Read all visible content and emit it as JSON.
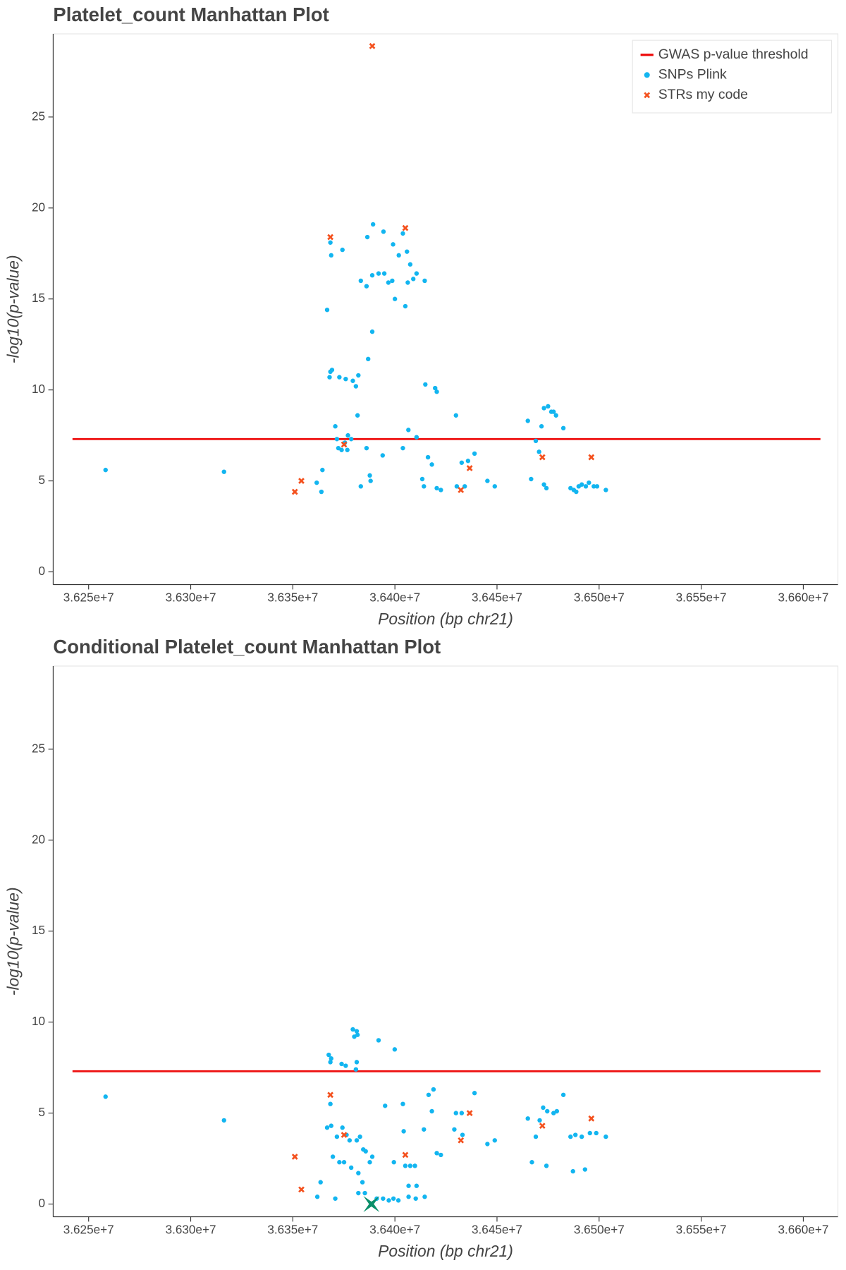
{
  "chart_data": [
    {
      "type": "scatter",
      "title": "Platelet_count Manhattan Plot",
      "x_label": "Position (bp chr21)",
      "y_label": "-log10(p-value)",
      "xlim": [
        36232640,
        36616970
      ],
      "ylim": [
        -0.7,
        29.57
      ],
      "xticks": [
        {
          "value": 36250000,
          "label": "3.625e+7"
        },
        {
          "value": 36300000,
          "label": "3.630e+7"
        },
        {
          "value": 36350000,
          "label": "3.635e+7"
        },
        {
          "value": 36400000,
          "label": "3.640e+7"
        },
        {
          "value": 36450000,
          "label": "3.645e+7"
        },
        {
          "value": 36500000,
          "label": "3.650e+7"
        },
        {
          "value": 36550000,
          "label": "3.655e+7"
        },
        {
          "value": 36600000,
          "label": "3.660e+7"
        }
      ],
      "yticks": [
        0,
        5,
        10,
        15,
        20,
        25
      ],
      "legend": "top-right",
      "series": [
        {
          "name": "GWAS p-value threshold",
          "marker": "line",
          "color": "#ee1111",
          "x": [
            36242100,
            36608400
          ],
          "values": [
            7.3,
            7.3
          ]
        },
        {
          "name": "SNPs Plink",
          "marker": "circle",
          "color": "#12b5f0",
          "x": [
            36258300,
            36316300,
            36361700,
            36364000,
            36364500,
            36366800,
            36368400,
            36368800,
            36374300,
            36368400,
            36369200,
            36368000,
            36370800,
            36371600,
            36372300,
            36373900,
            36375500,
            36377000,
            36378600,
            36376700,
            36372800,
            36375900,
            36379400,
            36380900,
            36382100,
            36381700,
            36383300,
            36386100,
            36386900,
            36387700,
            36388100,
            36386500,
            36389300,
            36388900,
            36383300,
            36386100,
            36388900,
            36392000,
            36394800,
            36396800,
            36398700,
            36394400,
            36399100,
            36401900,
            36400000,
            36405100,
            36403900,
            36405900,
            36407500,
            36406300,
            36409000,
            36410600,
            36414600,
            36394000,
            36403900,
            36406600,
            36410600,
            36414900,
            36419700,
            36420500,
            36413400,
            36414200,
            36416200,
            36418100,
            36420500,
            36422500,
            36429900,
            36430300,
            36432700,
            36435800,
            36434200,
            36439000,
            36445300,
            36448900,
            36465100,
            36469000,
            36470600,
            36471800,
            36473000,
            36475000,
            36476600,
            36478900,
            36477700,
            36482500,
            36466700,
            36473000,
            36474200,
            36486000,
            36487600,
            36490000,
            36491500,
            36493500,
            36495000,
            36497400,
            36499000,
            36503300,
            36488800
          ],
          "values": [
            5.6,
            5.5,
            4.9,
            4.4,
            5.6,
            14.4,
            18.1,
            17.4,
            17.7,
            11.0,
            11.1,
            10.7,
            8.0,
            7.3,
            6.8,
            6.7,
            7.1,
            7.5,
            7.3,
            6.7,
            10.7,
            10.6,
            10.5,
            10.2,
            10.8,
            8.6,
            4.7,
            6.8,
            11.7,
            5.3,
            5.0,
            18.4,
            19.1,
            13.2,
            16.0,
            15.7,
            16.3,
            16.4,
            16.4,
            15.9,
            16.0,
            18.7,
            18.0,
            17.4,
            15.0,
            14.6,
            18.6,
            17.6,
            16.9,
            15.9,
            16.1,
            16.4,
            16.0,
            6.4,
            6.8,
            7.8,
            7.4,
            10.3,
            10.1,
            9.9,
            5.1,
            4.7,
            6.3,
            5.9,
            4.6,
            4.5,
            8.6,
            4.7,
            6.0,
            6.1,
            4.7,
            6.5,
            5.0,
            4.7,
            8.3,
            7.2,
            6.6,
            8.0,
            9.0,
            9.1,
            8.8,
            8.6,
            8.8,
            7.9,
            5.1,
            4.8,
            4.6,
            4.6,
            4.5,
            4.7,
            4.8,
            4.7,
            4.9,
            4.7,
            4.7,
            4.5,
            4.4
          ]
        },
        {
          "name": "STRs my code",
          "marker": "x",
          "color": "#f4511e",
          "x": [
            36351000,
            36354200,
            36368400,
            36375100,
            36388900,
            36405100,
            36432300,
            36436600,
            36472200,
            36496200
          ],
          "values": [
            4.4,
            5.0,
            18.4,
            7.0,
            28.9,
            18.9,
            4.5,
            5.7,
            6.3,
            6.3
          ]
        }
      ]
    },
    {
      "type": "scatter",
      "title": "Conditional Platelet_count Manhattan Plot",
      "x_label": "Position (bp chr21)",
      "y_label": "-log10(p-value)",
      "xlim": [
        36232640,
        36616970
      ],
      "ylim": [
        -0.7,
        29.57
      ],
      "xticks": [
        {
          "value": 36250000,
          "label": "3.625e+7"
        },
        {
          "value": 36300000,
          "label": "3.630e+7"
        },
        {
          "value": 36350000,
          "label": "3.635e+7"
        },
        {
          "value": 36400000,
          "label": "3.640e+7"
        },
        {
          "value": 36450000,
          "label": "3.645e+7"
        },
        {
          "value": 36500000,
          "label": "3.650e+7"
        },
        {
          "value": 36550000,
          "label": "3.655e+7"
        },
        {
          "value": 36600000,
          "label": "3.660e+7"
        }
      ],
      "yticks": [
        0,
        5,
        10,
        15,
        20,
        25
      ],
      "series": [
        {
          "marker": "line",
          "color": "#ee1111",
          "x": [
            36242100,
            36608400
          ],
          "values": [
            7.3,
            7.3
          ]
        },
        {
          "marker": "circle",
          "color": "#12b5f0",
          "x": [
            36258300,
            36316300,
            36368400,
            36366800,
            36368800,
            36367600,
            36368800,
            36368400,
            36373900,
            36375900,
            36381300,
            36380900,
            36379400,
            36381300,
            36380100,
            36381700,
            36392000,
            36399900,
            36371600,
            36374300,
            36376300,
            36377800,
            36369600,
            36372800,
            36375100,
            36378600,
            36381300,
            36382900,
            36384500,
            36385700,
            36387700,
            36388900,
            36382100,
            36384100,
            36385300,
            36363600,
            36362000,
            36370800,
            36382100,
            36391100,
            36394200,
            36397000,
            36399300,
            36401700,
            36395200,
            36403900,
            36404300,
            36399500,
            36405100,
            36407500,
            36409800,
            36406700,
            36410600,
            36406700,
            36410200,
            36414600,
            36414200,
            36416500,
            36418100,
            36418900,
            36420500,
            36422500,
            36429900,
            36432700,
            36429100,
            36433100,
            36439000,
            36445300,
            36448900,
            36465100,
            36467100,
            36469000,
            36470900,
            36472600,
            36474600,
            36477700,
            36479300,
            36482500,
            36474200,
            36486000,
            36488400,
            36491500,
            36495500,
            36498600,
            36503300,
            36487200,
            36493100
          ],
          "values": [
            5.9,
            4.6,
            5.5,
            4.2,
            4.3,
            8.2,
            8.0,
            7.8,
            7.7,
            7.6,
            7.8,
            7.4,
            9.6,
            9.5,
            9.2,
            9.3,
            9.0,
            8.5,
            3.7,
            4.2,
            3.8,
            3.5,
            2.6,
            2.3,
            2.3,
            2.0,
            3.5,
            3.7,
            3.0,
            2.9,
            2.3,
            2.6,
            1.7,
            1.2,
            0.6,
            1.2,
            0.4,
            0.3,
            0.6,
            0.3,
            0.3,
            0.2,
            0.3,
            0.2,
            5.4,
            5.5,
            4.0,
            2.3,
            2.1,
            2.1,
            2.1,
            1.0,
            1.0,
            0.4,
            0.3,
            0.4,
            4.1,
            6.0,
            5.1,
            6.3,
            2.8,
            2.7,
            5.0,
            5.0,
            4.1,
            3.8,
            6.1,
            3.3,
            3.5,
            4.7,
            2.3,
            3.7,
            4.6,
            5.3,
            5.1,
            5.0,
            5.1,
            6.0,
            2.1,
            3.7,
            3.8,
            3.7,
            3.9,
            3.9,
            3.7,
            1.8,
            1.9
          ]
        },
        {
          "marker": "x",
          "color": "#f4511e",
          "x": [
            36351000,
            36354200,
            36368400,
            36375100,
            36405100,
            36432300,
            36436600,
            36472200,
            36496200
          ],
          "values": [
            2.6,
            0.8,
            6.0,
            3.8,
            2.7,
            3.5,
            5.0,
            4.3,
            4.7
          ]
        },
        {
          "marker": "star",
          "color": "#0b8f6a",
          "x": [
            36388500
          ],
          "values": [
            0.0
          ]
        }
      ]
    }
  ]
}
